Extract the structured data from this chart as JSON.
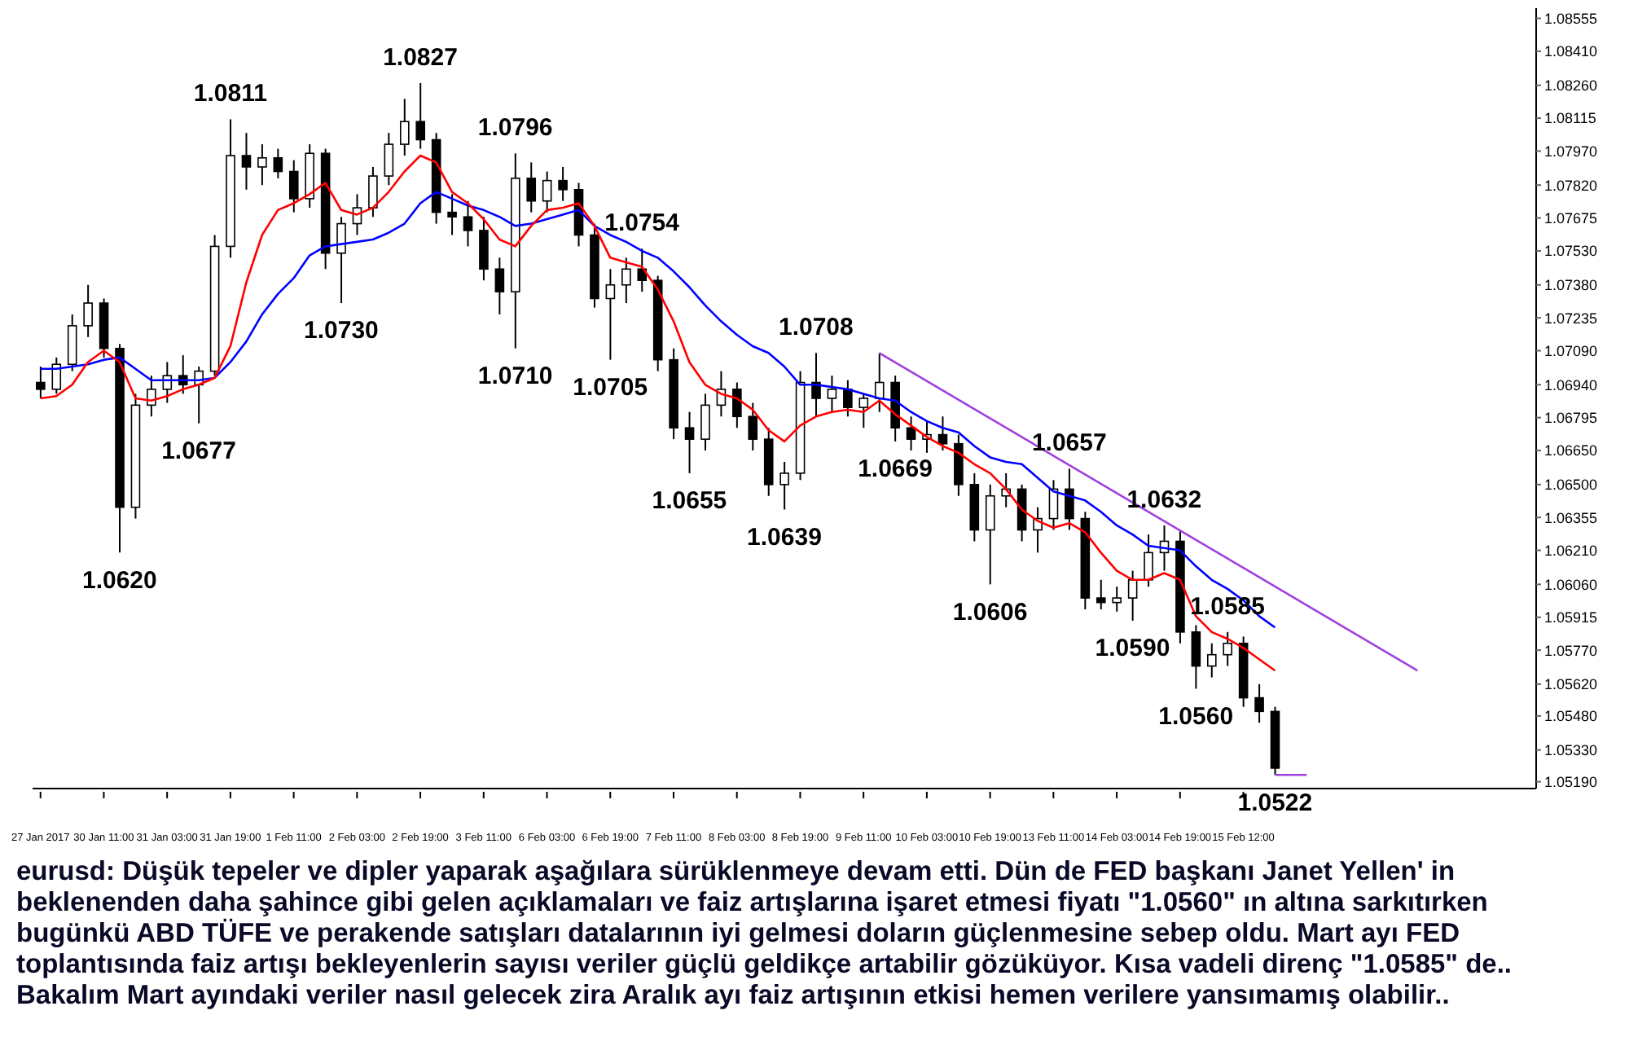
{
  "chart_data": {
    "type": "candlestick",
    "categories": [
      "27 Jan 2017",
      null,
      null,
      null,
      "30 Jan 11:00",
      null,
      null,
      null,
      "31 Jan 03:00",
      null,
      null,
      null,
      "31 Jan 19:00",
      null,
      null,
      null,
      "1 Feb 11:00",
      null,
      null,
      null,
      "2 Feb 03:00",
      null,
      null,
      null,
      "2 Feb 19:00",
      null,
      null,
      null,
      "3 Feb 11:00",
      null,
      null,
      null,
      "6 Feb 03:00",
      null,
      null,
      null,
      "6 Feb 19:00",
      null,
      null,
      null,
      "7 Feb 11:00",
      null,
      null,
      null,
      "8 Feb 03:00",
      null,
      null,
      null,
      "8 Feb 19:00",
      null,
      null,
      null,
      "9 Feb 11:00",
      null,
      null,
      null,
      "10 Feb 03:00",
      null,
      null,
      null,
      "10 Feb 19:00",
      null,
      null,
      null,
      "13 Feb 11:00",
      null,
      null,
      null,
      "14 Feb 03:00",
      null,
      null,
      null,
      "14 Feb 19:00",
      null,
      null,
      null,
      "15 Feb 12:00",
      null,
      null,
      null,
      null,
      null,
      null,
      null,
      null,
      null,
      null,
      null,
      null,
      null,
      null,
      null,
      null,
      null,
      null
    ],
    "ohlc": [
      [
        1.0695,
        1.0702,
        1.0688,
        1.0692
      ],
      [
        1.0692,
        1.0706,
        1.069,
        1.0703
      ],
      [
        1.0703,
        1.0725,
        1.07,
        1.072
      ],
      [
        1.072,
        1.0738,
        1.0715,
        1.073
      ],
      [
        1.073,
        1.0732,
        1.0706,
        1.071
      ],
      [
        1.071,
        1.0712,
        1.062,
        1.064
      ],
      [
        1.064,
        1.069,
        1.0635,
        1.0685
      ],
      [
        1.0685,
        1.0698,
        1.068,
        1.0692
      ],
      [
        1.0692,
        1.0704,
        1.0686,
        1.0698
      ],
      [
        1.0698,
        1.0707,
        1.069,
        1.0694
      ],
      [
        1.0694,
        1.0702,
        1.0677,
        1.07
      ],
      [
        1.07,
        1.076,
        1.0698,
        1.0755
      ],
      [
        1.0755,
        1.0811,
        1.075,
        1.0795
      ],
      [
        1.0795,
        1.0805,
        1.078,
        1.079
      ],
      [
        1.079,
        1.08,
        1.0782,
        1.0794
      ],
      [
        1.0794,
        1.0798,
        1.0785,
        1.0788
      ],
      [
        1.0788,
        1.0793,
        1.077,
        1.0776
      ],
      [
        1.0776,
        1.08,
        1.0772,
        1.0796
      ],
      [
        1.0796,
        1.0798,
        1.0745,
        1.0752
      ],
      [
        1.0752,
        1.0768,
        1.073,
        1.0765
      ],
      [
        1.0765,
        1.0778,
        1.076,
        1.0772
      ],
      [
        1.0772,
        1.079,
        1.0768,
        1.0786
      ],
      [
        1.0786,
        1.0805,
        1.0782,
        1.08
      ],
      [
        1.08,
        1.082,
        1.0795,
        1.081
      ],
      [
        1.081,
        1.0827,
        1.0798,
        1.0802
      ],
      [
        1.0802,
        1.0805,
        1.0765,
        1.077
      ],
      [
        1.077,
        1.0778,
        1.076,
        1.0768
      ],
      [
        1.0768,
        1.0775,
        1.0755,
        1.0762
      ],
      [
        1.0762,
        1.0768,
        1.074,
        1.0745
      ],
      [
        1.0745,
        1.075,
        1.0725,
        1.0735
      ],
      [
        1.0735,
        1.0796,
        1.071,
        1.0785
      ],
      [
        1.0785,
        1.0792,
        1.077,
        1.0775
      ],
      [
        1.0775,
        1.0788,
        1.077,
        1.0784
      ],
      [
        1.0784,
        1.079,
        1.0775,
        1.078
      ],
      [
        1.078,
        1.0783,
        1.0755,
        1.076
      ],
      [
        1.076,
        1.0765,
        1.0728,
        1.0732
      ],
      [
        1.0732,
        1.0745,
        1.0705,
        1.0738
      ],
      [
        1.0738,
        1.075,
        1.073,
        1.0745
      ],
      [
        1.0745,
        1.0754,
        1.0735,
        1.074
      ],
      [
        1.074,
        1.0742,
        1.07,
        1.0705
      ],
      [
        1.0705,
        1.071,
        1.067,
        1.0675
      ],
      [
        1.0675,
        1.0682,
        1.0655,
        1.067
      ],
      [
        1.067,
        1.069,
        1.0665,
        1.0685
      ],
      [
        1.0685,
        1.07,
        1.068,
        1.0692
      ],
      [
        1.0692,
        1.0695,
        1.0675,
        1.068
      ],
      [
        1.068,
        1.0686,
        1.0665,
        1.067
      ],
      [
        1.067,
        1.0675,
        1.0645,
        1.065
      ],
      [
        1.065,
        1.066,
        1.0639,
        1.0655
      ],
      [
        1.0655,
        1.07,
        1.0652,
        1.0695
      ],
      [
        1.0695,
        1.0708,
        1.068,
        1.0688
      ],
      [
        1.0688,
        1.0698,
        1.0682,
        1.0692
      ],
      [
        1.0692,
        1.0696,
        1.068,
        1.0684
      ],
      [
        1.0684,
        1.069,
        1.0675,
        1.0688
      ],
      [
        1.0688,
        1.0708,
        1.0682,
        1.0695
      ],
      [
        1.0695,
        1.0698,
        1.0669,
        1.0675
      ],
      [
        1.0675,
        1.068,
        1.0665,
        1.067
      ],
      [
        1.067,
        1.0678,
        1.0664,
        1.0672
      ],
      [
        1.0672,
        1.068,
        1.0665,
        1.0668
      ],
      [
        1.0668,
        1.0672,
        1.0645,
        1.065
      ],
      [
        1.065,
        1.0655,
        1.0625,
        1.063
      ],
      [
        1.063,
        1.065,
        1.0606,
        1.0645
      ],
      [
        1.0645,
        1.0655,
        1.064,
        1.0648
      ],
      [
        1.0648,
        1.065,
        1.0625,
        1.063
      ],
      [
        1.063,
        1.064,
        1.062,
        1.0635
      ],
      [
        1.0635,
        1.0652,
        1.063,
        1.0648
      ],
      [
        1.0648,
        1.0657,
        1.063,
        1.0635
      ],
      [
        1.0635,
        1.0638,
        1.0595,
        1.06
      ],
      [
        1.06,
        1.0608,
        1.0595,
        1.0598
      ],
      [
        1.0598,
        1.0605,
        1.0594,
        1.06
      ],
      [
        1.06,
        1.0612,
        1.059,
        1.0608
      ],
      [
        1.0608,
        1.0628,
        1.0605,
        1.062
      ],
      [
        1.062,
        1.0632,
        1.0612,
        1.0625
      ],
      [
        1.0625,
        1.063,
        1.058,
        1.0585
      ],
      [
        1.0585,
        1.0588,
        1.056,
        1.057
      ],
      [
        1.057,
        1.058,
        1.0565,
        1.0575
      ],
      [
        1.0575,
        1.0585,
        1.057,
        1.058
      ],
      [
        1.058,
        1.0583,
        1.0552,
        1.0556
      ],
      [
        1.0556,
        1.0562,
        1.0545,
        1.055
      ],
      [
        1.055,
        1.0552,
        1.0522,
        1.0525
      ],
      null,
      null,
      null,
      null,
      null,
      null,
      null,
      null,
      null,
      null,
      null,
      null,
      null,
      null,
      null,
      null
    ],
    "series": [
      {
        "type": "line",
        "color": "#0000ff",
        "values": [
          1.0701,
          1.0701,
          1.0702,
          1.0703,
          1.0705,
          1.0706,
          1.0701,
          1.0696,
          1.0696,
          1.0696,
          1.0696,
          1.0697,
          1.0704,
          1.0713,
          1.0725,
          1.0734,
          1.0741,
          1.0751,
          1.0755,
          1.0756,
          1.0757,
          1.0758,
          1.0761,
          1.0765,
          1.0774,
          1.0779,
          1.0776,
          1.0773,
          1.0771,
          1.0768,
          1.0764,
          1.0765,
          1.0767,
          1.0769,
          1.0771,
          1.0764,
          1.076,
          1.0757,
          1.0753,
          1.075,
          1.0744,
          1.0737,
          1.0729,
          1.0722,
          1.0716,
          1.0711,
          1.0708,
          1.0702,
          1.0694,
          1.0694,
          1.0693,
          1.0692,
          1.069,
          1.0688,
          1.0687,
          1.0682,
          1.0678,
          1.0675,
          1.0673,
          1.0667,
          1.0662,
          1.066,
          1.0659,
          1.0653,
          1.0647,
          1.0645,
          1.0643,
          1.0638,
          1.0632,
          1.0628,
          1.0623,
          1.0622,
          1.0621,
          1.0614,
          1.0608,
          1.0604,
          1.0599,
          1.0592,
          1.0587,
          null,
          null,
          null,
          null,
          null,
          null,
          null,
          null,
          null,
          null,
          null,
          null,
          null,
          null,
          null,
          null
        ]
      },
      {
        "type": "line",
        "color": "#ff0000",
        "values": [
          1.0688,
          1.0689,
          1.0694,
          1.0704,
          1.0709,
          1.0704,
          1.0688,
          1.0687,
          1.0689,
          1.0692,
          1.0694,
          1.0697,
          1.0711,
          1.0739,
          1.076,
          1.0771,
          1.0774,
          1.0778,
          1.0783,
          1.0771,
          1.0769,
          1.0772,
          1.0779,
          1.0788,
          1.0795,
          1.0792,
          1.0779,
          1.0774,
          1.0767,
          1.0758,
          1.0755,
          1.0764,
          1.0771,
          1.0772,
          1.0774,
          1.0764,
          1.075,
          1.0748,
          1.0746,
          1.0736,
          1.0722,
          1.0704,
          1.0694,
          1.069,
          1.0688,
          1.0683,
          1.0674,
          1.0669,
          1.0676,
          1.068,
          1.0682,
          1.0683,
          1.0682,
          1.0687,
          1.0681,
          1.0676,
          1.0671,
          1.0667,
          1.0664,
          1.0659,
          1.0655,
          1.0648,
          1.0639,
          1.0634,
          1.0631,
          1.0633,
          1.0629,
          1.062,
          1.0612,
          1.0608,
          1.0608,
          1.0611,
          1.0608,
          1.0592,
          1.0585,
          1.0582,
          1.0578,
          1.0573,
          1.0568,
          null,
          null,
          null,
          null,
          null,
          null,
          null,
          null,
          null,
          null,
          null,
          null,
          null,
          null,
          null,
          null
        ]
      },
      {
        "type": "line",
        "color": "#a040e0",
        "values": [
          null,
          null,
          null,
          null,
          null,
          null,
          null,
          null,
          null,
          null,
          null,
          null,
          null,
          null,
          null,
          null,
          null,
          null,
          null,
          null,
          null,
          null,
          null,
          null,
          null,
          null,
          null,
          null,
          null,
          null,
          null,
          null,
          null,
          null,
          null,
          null,
          null,
          null,
          null,
          null,
          null,
          null,
          null,
          null,
          null,
          null,
          null,
          null,
          null,
          null,
          null,
          null,
          null,
          1.0708,
          null,
          null,
          null,
          null,
          null,
          null,
          null,
          null,
          null,
          null,
          null,
          null,
          null,
          null,
          null,
          null,
          null,
          null,
          null,
          null,
          null,
          null,
          null,
          null,
          null,
          null,
          null,
          null,
          null,
          null,
          null,
          null,
          null,
          1.0568,
          null,
          null,
          null,
          null,
          null,
          null,
          null
        ]
      },
      {
        "type": "line",
        "color": "#a040e0",
        "values": [
          null,
          null,
          null,
          null,
          null,
          null,
          null,
          null,
          null,
          null,
          null,
          null,
          null,
          null,
          null,
          null,
          null,
          null,
          null,
          null,
          null,
          null,
          null,
          null,
          null,
          null,
          null,
          null,
          null,
          null,
          null,
          null,
          null,
          null,
          null,
          null,
          null,
          null,
          null,
          null,
          null,
          null,
          null,
          null,
          null,
          null,
          null,
          null,
          null,
          null,
          null,
          null,
          null,
          null,
          null,
          null,
          null,
          null,
          null,
          null,
          null,
          null,
          null,
          null,
          null,
          null,
          null,
          null,
          null,
          null,
          null,
          null,
          null,
          null,
          null,
          null,
          null,
          null,
          1.0522,
          1.0522,
          1.0522,
          null,
          null,
          null,
          null,
          null,
          null,
          null,
          null,
          null,
          null,
          null,
          null,
          null,
          null
        ]
      }
    ],
    "ylim": [
      1.0516,
      1.086
    ],
    "yticks": [
      {
        "value": 1.0519,
        "label": "1.05190"
      },
      {
        "value": 1.0533,
        "label": "1.05330"
      },
      {
        "value": 1.0548,
        "label": "1.05480"
      },
      {
        "value": 1.0562,
        "label": "1.05620"
      },
      {
        "value": 1.0577,
        "label": "1.05770"
      },
      {
        "value": 1.05915,
        "label": "1.05915"
      },
      {
        "value": 1.0606,
        "label": "1.06060"
      },
      {
        "value": 1.0621,
        "label": "1.06210"
      },
      {
        "value": 1.06355,
        "label": "1.06355"
      },
      {
        "value": 1.065,
        "label": "1.06500"
      },
      {
        "value": 1.0665,
        "label": "1.06650"
      },
      {
        "value": 1.06795,
        "label": "1.06795"
      },
      {
        "value": 1.0694,
        "label": "1.06940"
      },
      {
        "value": 1.0709,
        "label": "1.07090"
      },
      {
        "value": 1.07235,
        "label": "1.07235"
      },
      {
        "value": 1.0738,
        "label": "1.07380"
      },
      {
        "value": 1.0753,
        "label": "1.07530"
      },
      {
        "value": 1.07675,
        "label": "1.07675"
      },
      {
        "value": 1.0782,
        "label": "1.07820"
      },
      {
        "value": 1.0797,
        "label": "1.07970"
      },
      {
        "value": 1.08115,
        "label": "1.08115"
      },
      {
        "value": 1.0826,
        "label": "1.08260"
      },
      {
        "value": 1.0841,
        "label": "1.08410"
      },
      {
        "value": 1.08555,
        "label": "1.08555"
      }
    ],
    "annotations": [
      {
        "text": "1.0811",
        "y": 1.0811
      },
      {
        "text": "1.0827",
        "y": 1.0827
      },
      {
        "text": "1.0796",
        "y": 1.0796
      },
      {
        "text": "1.0754",
        "y": 1.0754
      },
      {
        "text": "1.0730",
        "y": 1.073
      },
      {
        "text": "1.0710",
        "y": 1.071
      },
      {
        "text": "1.0705",
        "y": 1.0705
      },
      {
        "text": "1.0677",
        "y": 1.0677
      },
      {
        "text": "1.0620",
        "y": 1.062
      },
      {
        "text": "1.0655",
        "y": 1.0655
      },
      {
        "text": "1.0639",
        "y": 1.0639
      },
      {
        "text": "1.0708",
        "y": 1.0708
      },
      {
        "text": "1.0669",
        "y": 1.0669
      },
      {
        "text": "1.0606",
        "y": 1.0606
      },
      {
        "text": "1.0657",
        "y": 1.0657
      },
      {
        "text": "1.0632",
        "y": 1.0632
      },
      {
        "text": "1.0590",
        "y": 1.059
      },
      {
        "text": "1.0585",
        "y": 1.0585
      },
      {
        "text": "1.0560",
        "y": 1.056
      },
      {
        "text": "1.0522",
        "y": 1.0522
      },
      "eurusd: Düşük tepeler ve dipler yaparak aşağılara sürüklenmeye devam etti. Dün de FED başkanı Janet Yellen' in beklenenden daha şahince gibi gelen açıklamaları ve faiz artışlarına işaret etmesi fiyatı \"1.0560\" ın altına sarkıtırken bugünkü ABD TÜFE ve perakende satışları datalarının iyi gelmesi doların güçlenmesine sebep oldu. Mart ayı FED toplantısında faiz artışı bekleyenlerin sayısı veriler güçlü geldikçe artabilir gözüküyor. Kısa vadeli direnç \"1.0585\" de.. Bakalım Mart ayındaki veriler nasıl gelecek zira Aralık ayı faiz artışının etkisi hemen verilere yansımamış olabilir.."
    ]
  }
}
